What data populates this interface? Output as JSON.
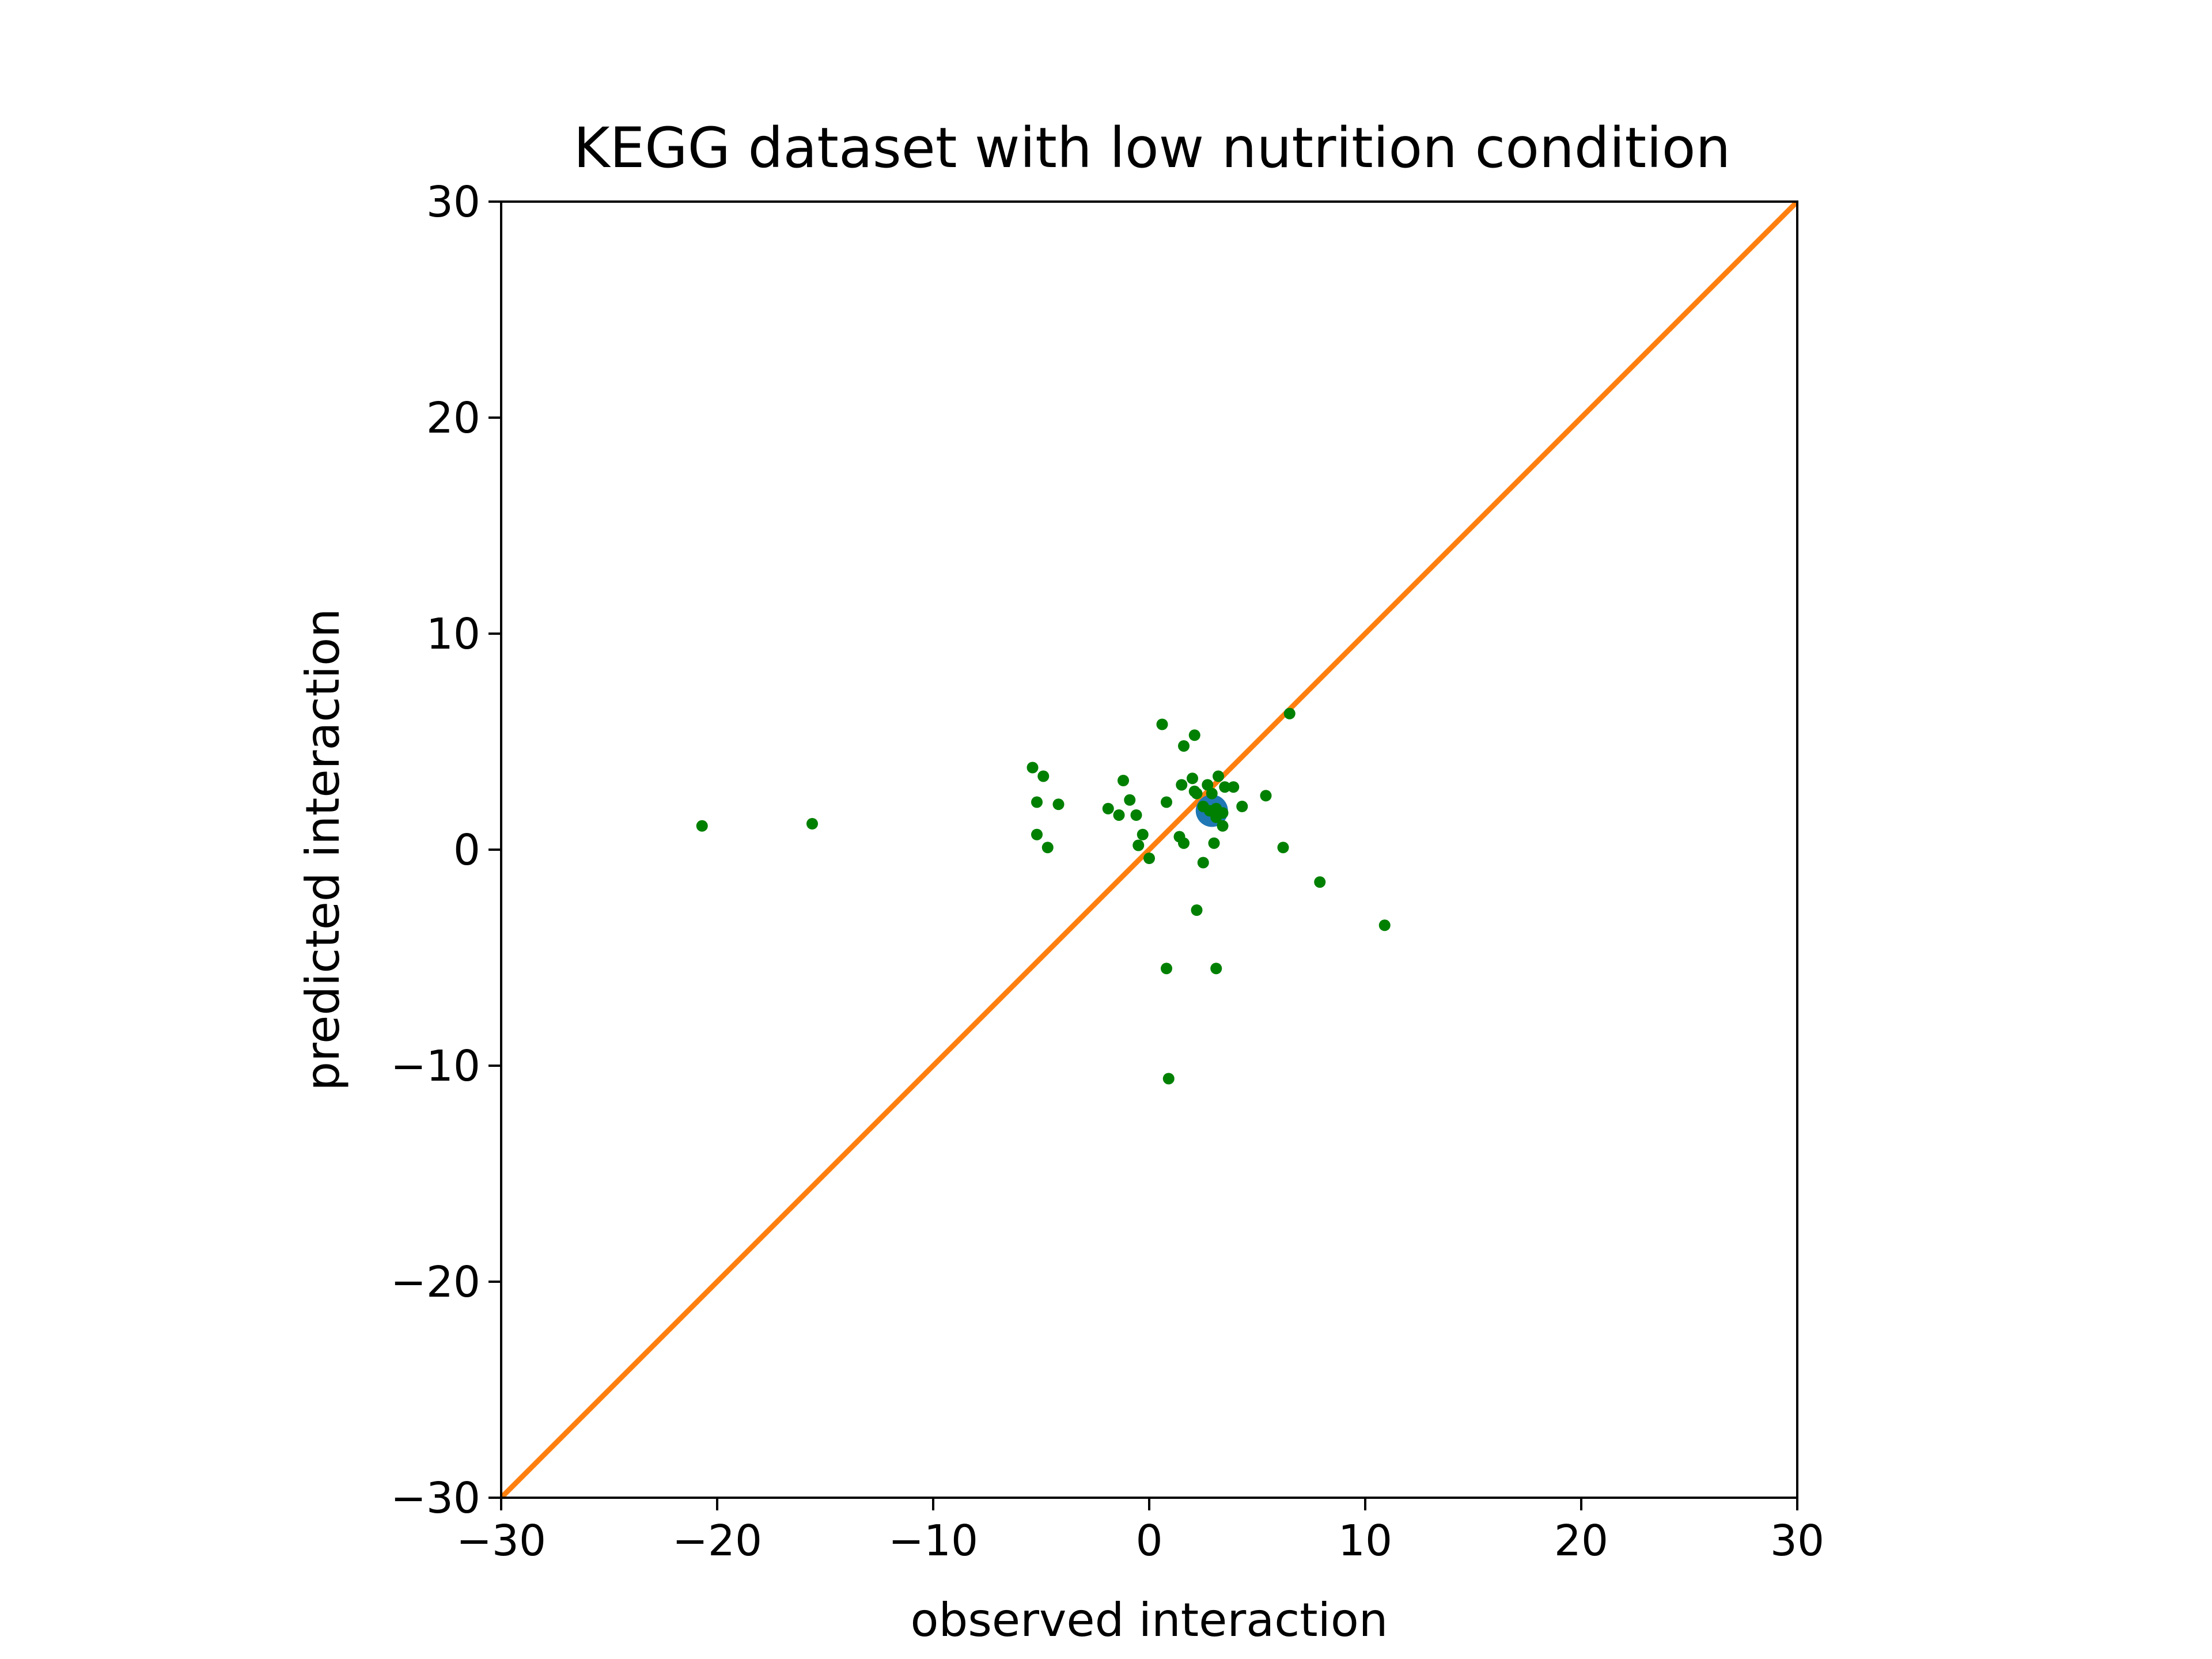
{
  "chart_data": {
    "type": "scatter",
    "title": "KEGG dataset with low nutrition condition",
    "xlabel": "observed interaction",
    "ylabel": "predicted interaction",
    "xlim": [
      -30,
      30
    ],
    "ylim": [
      -30,
      30
    ],
    "xticks": [
      -30,
      -20,
      -10,
      0,
      10,
      20,
      30
    ],
    "yticks": [
      -30,
      -20,
      -10,
      0,
      10,
      20,
      30
    ],
    "xtick_labels": [
      "−30",
      "−20",
      "−10",
      "0",
      "10",
      "20",
      "30"
    ],
    "ytick_labels": [
      "−30",
      "−20",
      "−10",
      "0",
      "10",
      "20",
      "30"
    ],
    "grid": false,
    "series": [
      {
        "type": "line",
        "color": "#ff7f0e",
        "x": [
          -30,
          30
        ],
        "y": [
          -30,
          30
        ]
      },
      {
        "type": "scatter",
        "color": "#1f77b4",
        "x": [
          2.9
        ],
        "y": [
          1.8
        ]
      },
      {
        "type": "scatter",
        "color": "#008000",
        "x": [
          -20.7,
          -15.6,
          -5.4,
          -4.9,
          -5.2,
          -4.2,
          -5.2,
          -4.7,
          -1.9,
          -1.4,
          -1.2,
          -0.9,
          -0.6,
          -0.5,
          -0.3,
          0.0,
          0.6,
          0.8,
          0.9,
          1.4,
          1.6,
          1.5,
          1.6,
          2.0,
          2.1,
          2.1,
          2.2,
          2.5,
          2.5,
          2.7,
          2.8,
          2.9,
          3.0,
          3.1,
          3.1,
          3.2,
          3.4,
          3.4,
          3.5,
          3.9,
          4.3,
          5.4,
          6.2,
          6.5,
          7.9,
          10.9,
          0.8,
          2.2,
          3.1
        ],
        "y": [
          1.1,
          1.2,
          3.8,
          3.4,
          2.2,
          2.1,
          0.7,
          0.1,
          1.9,
          1.6,
          3.2,
          2.3,
          1.6,
          0.2,
          0.7,
          -0.4,
          5.8,
          2.2,
          -10.6,
          0.6,
          4.8,
          3.0,
          0.3,
          3.3,
          2.7,
          5.3,
          2.6,
          -0.6,
          2.0,
          3.0,
          1.8,
          2.6,
          0.3,
          1.5,
          1.9,
          3.4,
          1.1,
          1.7,
          2.9,
          2.9,
          2.0,
          2.5,
          0.1,
          6.3,
          -1.5,
          -3.5,
          -5.5,
          -2.8,
          -5.5
        ]
      }
    ]
  }
}
